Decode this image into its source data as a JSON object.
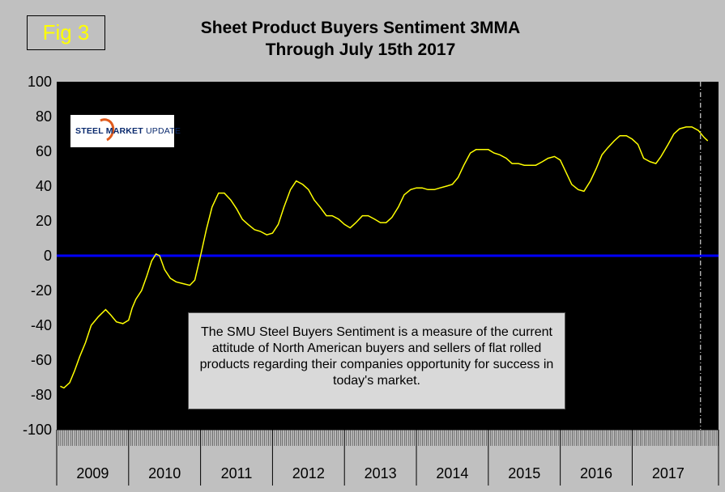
{
  "badge": {
    "label": "Fig 3"
  },
  "title": {
    "line1": "Sheet Product Buyers Sentiment 3MMA",
    "line2": "Through July 15th 2017"
  },
  "logo": {
    "word1": "STEEL MARKET",
    "word2": " UPDATE"
  },
  "note": {
    "text": "The SMU Steel Buyers Sentiment is a measure of the current attitude of North American buyers and sellers of flat rolled products regarding their companies opportunity for success in today's market."
  },
  "colors": {
    "plot_bg": "#000000",
    "frame_bg": "#c0c0c0",
    "line": "#ffff00",
    "zero_line": "#0000ff",
    "marker_line": "#ffffff"
  },
  "chart_data": {
    "type": "line",
    "title": "Sheet Product Buyers Sentiment 3MMA Through July 15th 2017",
    "xlabel": "",
    "ylabel": "",
    "ylim": [
      -100,
      100
    ],
    "yticks": [
      100,
      80,
      60,
      40,
      20,
      0,
      -20,
      -40,
      -60,
      -80,
      -100
    ],
    "categories": [
      "2009",
      "2010",
      "2011",
      "2012",
      "2013",
      "2014",
      "2015",
      "2016",
      "2017"
    ],
    "grid": false,
    "legend": "none",
    "reference_lines": [
      {
        "axis": "y",
        "value": 0,
        "style": "solid",
        "color": "#0000ff"
      },
      {
        "axis": "x",
        "value": 2017.0,
        "style": "dash-dot",
        "color": "#ffffff"
      }
    ],
    "series": [
      {
        "values": [
          [
            2009.05,
            -75
          ],
          [
            2009.1,
            -76
          ],
          [
            2009.18,
            -73
          ],
          [
            2009.25,
            -66
          ],
          [
            2009.32,
            -58
          ],
          [
            2009.4,
            -50
          ],
          [
            2009.48,
            -40
          ],
          [
            2009.58,
            -35
          ],
          [
            2009.68,
            -31
          ],
          [
            2009.75,
            -34
          ],
          [
            2009.83,
            -38
          ],
          [
            2009.92,
            -39
          ],
          [
            2010.0,
            -37
          ],
          [
            2010.05,
            -30
          ],
          [
            2010.1,
            -25
          ],
          [
            2010.18,
            -20
          ],
          [
            2010.25,
            -12
          ],
          [
            2010.32,
            -3
          ],
          [
            2010.38,
            1
          ],
          [
            2010.43,
            0
          ],
          [
            2010.5,
            -8
          ],
          [
            2010.58,
            -13
          ],
          [
            2010.66,
            -15
          ],
          [
            2010.75,
            -16
          ],
          [
            2010.85,
            -17
          ],
          [
            2010.92,
            -14
          ],
          [
            2011.0,
            0
          ],
          [
            2011.08,
            15
          ],
          [
            2011.16,
            28
          ],
          [
            2011.25,
            36
          ],
          [
            2011.33,
            36
          ],
          [
            2011.42,
            32
          ],
          [
            2011.5,
            27
          ],
          [
            2011.58,
            21
          ],
          [
            2011.66,
            18
          ],
          [
            2011.75,
            15
          ],
          [
            2011.83,
            14
          ],
          [
            2011.92,
            12
          ],
          [
            2012.0,
            13
          ],
          [
            2012.08,
            18
          ],
          [
            2012.16,
            28
          ],
          [
            2012.25,
            38
          ],
          [
            2012.33,
            43
          ],
          [
            2012.42,
            41
          ],
          [
            2012.5,
            38
          ],
          [
            2012.58,
            32
          ],
          [
            2012.66,
            28
          ],
          [
            2012.75,
            23
          ],
          [
            2012.83,
            23
          ],
          [
            2012.92,
            21
          ],
          [
            2013.0,
            18
          ],
          [
            2013.08,
            16
          ],
          [
            2013.16,
            19
          ],
          [
            2013.25,
            23
          ],
          [
            2013.33,
            23
          ],
          [
            2013.42,
            21
          ],
          [
            2013.5,
            19
          ],
          [
            2013.58,
            19
          ],
          [
            2013.66,
            22
          ],
          [
            2013.75,
            28
          ],
          [
            2013.83,
            35
          ],
          [
            2013.92,
            38
          ],
          [
            2014.0,
            39
          ],
          [
            2014.08,
            39
          ],
          [
            2014.16,
            38
          ],
          [
            2014.25,
            38
          ],
          [
            2014.33,
            39
          ],
          [
            2014.42,
            40
          ],
          [
            2014.5,
            41
          ],
          [
            2014.58,
            45
          ],
          [
            2014.66,
            52
          ],
          [
            2014.75,
            59
          ],
          [
            2014.83,
            61
          ],
          [
            2014.92,
            61
          ],
          [
            2015.0,
            61
          ],
          [
            2015.08,
            59
          ],
          [
            2015.16,
            58
          ],
          [
            2015.25,
            56
          ],
          [
            2015.33,
            53
          ],
          [
            2015.42,
            53
          ],
          [
            2015.5,
            52
          ],
          [
            2015.58,
            52
          ],
          [
            2015.66,
            52
          ],
          [
            2015.75,
            54
          ],
          [
            2015.83,
            56
          ],
          [
            2015.92,
            57
          ],
          [
            2016.0,
            55
          ],
          [
            2016.08,
            48
          ],
          [
            2016.16,
            41
          ],
          [
            2016.25,
            38
          ],
          [
            2016.33,
            37
          ],
          [
            2016.42,
            43
          ],
          [
            2016.5,
            50
          ],
          [
            2016.58,
            58
          ],
          [
            2016.66,
            62
          ],
          [
            2016.75,
            66
          ],
          [
            2016.83,
            69
          ],
          [
            2016.92,
            69
          ],
          [
            2017.0,
            67
          ],
          [
            2017.08,
            64
          ],
          [
            2017.16,
            56
          ],
          [
            2017.25,
            54
          ],
          [
            2017.33,
            53
          ],
          [
            2017.4,
            57
          ],
          [
            2017.5,
            64
          ],
          [
            2017.58,
            70
          ],
          [
            2017.66,
            73
          ],
          [
            2017.75,
            74
          ],
          [
            2017.83,
            74
          ],
          [
            2017.92,
            72
          ],
          [
            2018.0,
            68
          ],
          [
            2018.05,
            66
          ]
        ]
      }
    ]
  }
}
